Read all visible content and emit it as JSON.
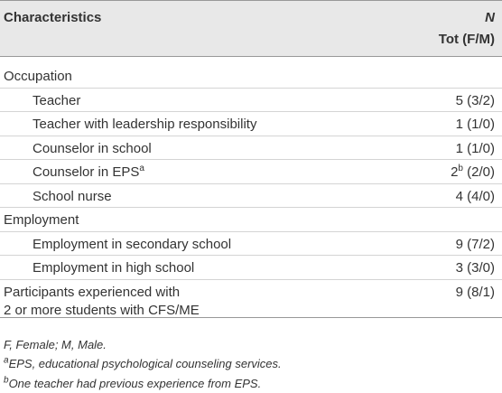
{
  "header": {
    "characteristics": "Characteristics",
    "n": "N",
    "tot": "Tot (F/M)"
  },
  "sections": [
    {
      "title": "Occupation",
      "rows": [
        {
          "label": "Teacher",
          "value": "5 (3/2)"
        },
        {
          "label": "Teacher with leadership responsibility",
          "value": "1 (1/0)"
        },
        {
          "label": "Counselor in school",
          "value": "1 (1/0)"
        },
        {
          "label": "Counselor in EPS",
          "label_sup": "a",
          "value": "2",
          "value_sup": "b",
          "value_rest": " (2/0)"
        },
        {
          "label": "School nurse",
          "value": "4 (4/0)"
        }
      ]
    },
    {
      "title": "Employment",
      "rows": [
        {
          "label": "Employment in secondary school",
          "value": "9 (7/2)"
        },
        {
          "label": "Employment in high school",
          "value": "3 (3/0)"
        }
      ]
    },
    {
      "title_lines": [
        "Participants experienced with",
        "2 or more students with CFS/ME"
      ],
      "value": "9 (8/1)"
    }
  ],
  "footnotes": [
    {
      "text": "F, Female; M, Male."
    },
    {
      "sup": "a",
      "text": "EPS, educational psychological counseling services."
    },
    {
      "sup": "b",
      "text": "One teacher had previous experience from EPS."
    }
  ]
}
